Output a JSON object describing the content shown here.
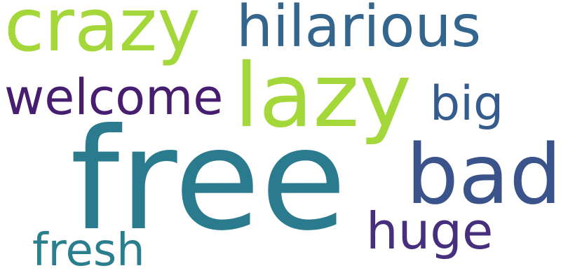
{
  "words": [
    {
      "id": "free",
      "text": "free",
      "color": "#2a7b8e"
    },
    {
      "id": "lazy",
      "text": "lazy",
      "color": "#a4d73a"
    },
    {
      "id": "crazy",
      "text": "crazy",
      "color": "#a4d73a"
    },
    {
      "id": "hilarious",
      "text": "hilarious",
      "color": "#33658d"
    },
    {
      "id": "bad",
      "text": "bad",
      "color": "#3b538b"
    },
    {
      "id": "welcome",
      "text": "welcome",
      "color": "#471d6f"
    },
    {
      "id": "big",
      "text": "big",
      "color": "#365c8d"
    },
    {
      "id": "huge",
      "text": "huge",
      "color": "#472f7d"
    },
    {
      "id": "fresh",
      "text": "fresh",
      "color": "#2a7f8e"
    }
  ]
}
